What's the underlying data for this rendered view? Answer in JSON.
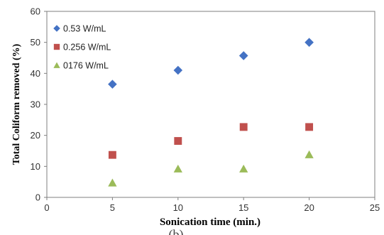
{
  "chart_data": {
    "type": "scatter",
    "xlabel": "Sonication time (min.)",
    "ylabel": "Total Coliform removed (%)",
    "xlim": [
      0,
      25
    ],
    "ylim": [
      0,
      60
    ],
    "xticks": [
      "0",
      "5",
      "10",
      "15",
      "20",
      "25"
    ],
    "yticks": [
      "0",
      "10",
      "20",
      "30",
      "40",
      "50",
      "60"
    ],
    "grid": false,
    "legend_position": "top-left",
    "series": [
      {
        "name": "0.53 W/mL",
        "marker": "diamond",
        "color": "#4472C4",
        "x": [
          5,
          10,
          15,
          20
        ],
        "y": [
          36.5,
          41,
          45.7,
          50
        ]
      },
      {
        "name": "0.256 W/mL",
        "marker": "square",
        "color": "#C0504D",
        "x": [
          5,
          10,
          15,
          20
        ],
        "y": [
          13.7,
          18.2,
          22.7,
          22.7
        ]
      },
      {
        "name": "0176 W/mL",
        "marker": "triangle",
        "color": "#9BBB59",
        "x": [
          5,
          10,
          15,
          20
        ],
        "y": [
          4.7,
          9.2,
          9.2,
          13.8
        ]
      }
    ]
  },
  "cropped_caption": "(b)"
}
